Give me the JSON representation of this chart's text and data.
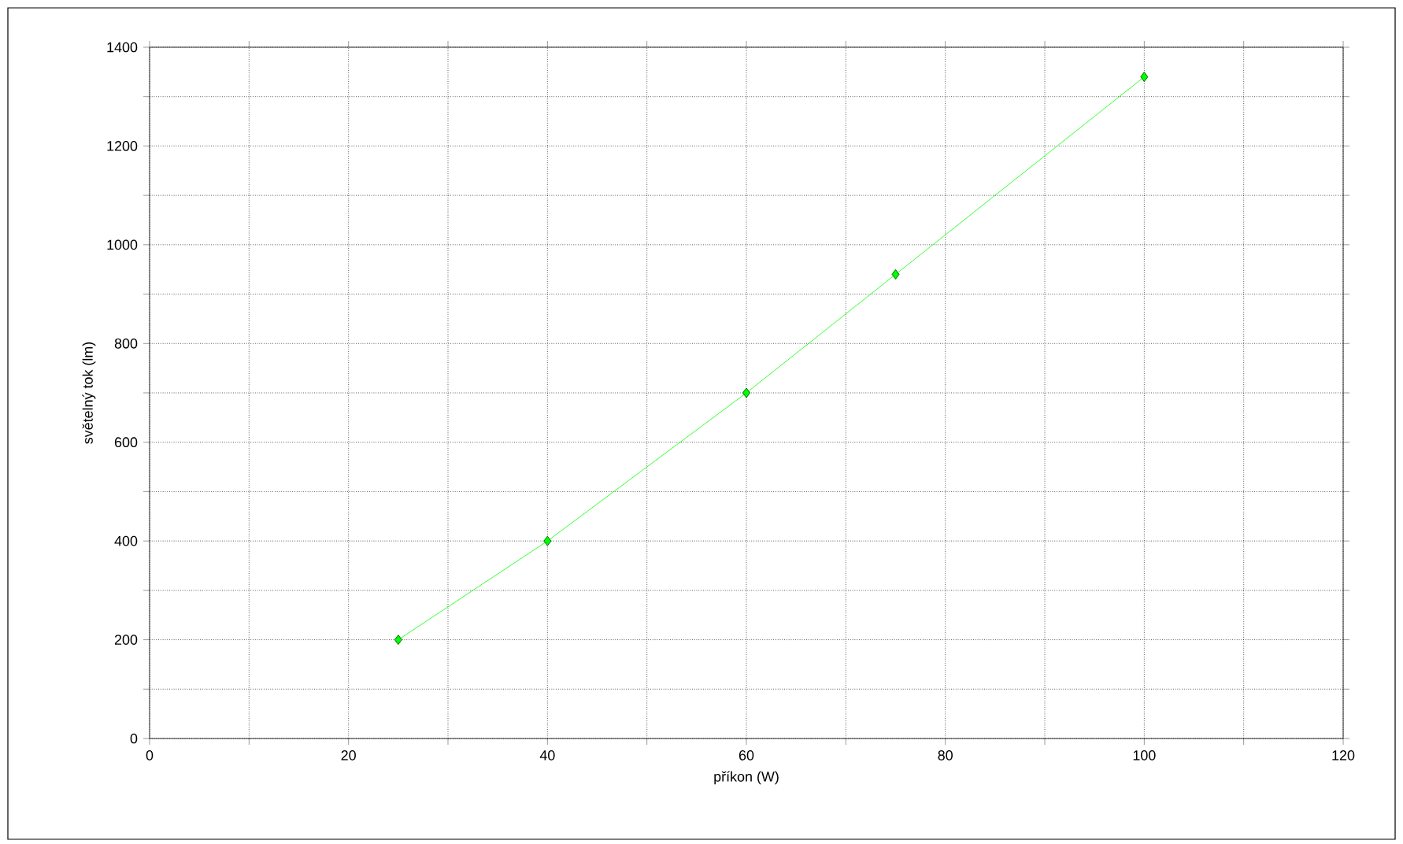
{
  "chart_data": {
    "type": "line",
    "xlabel": "příkon (W)",
    "ylabel": "světelný tok (lm)",
    "x": [
      25,
      40,
      60,
      75,
      100
    ],
    "series": [
      {
        "color": "#00ff00",
        "values": [
          200,
          400,
          700,
          940,
          1340
        ]
      }
    ],
    "xlim": [
      0,
      120
    ],
    "ylim": [
      0,
      1400
    ],
    "xticks": [
      0,
      {
        "value": 10,
        "label": null
      },
      20,
      {
        "value": 30,
        "label": null
      },
      40,
      {
        "value": 50,
        "label": null
      },
      60,
      {
        "value": 70,
        "label": null
      },
      80,
      {
        "value": 90,
        "label": null
      },
      100,
      {
        "value": 110,
        "label": null
      },
      120
    ],
    "yticks": [
      0,
      {
        "value": 100,
        "label": null
      },
      200,
      {
        "value": 300,
        "label": null
      },
      400,
      {
        "value": 500,
        "label": null
      },
      600,
      {
        "value": 700,
        "label": null
      },
      800,
      {
        "value": 900,
        "label": null
      },
      1000,
      {
        "value": 1100,
        "label": null
      },
      1200,
      {
        "value": 1300,
        "label": null
      },
      1400
    ],
    "grid": true,
    "marker": "diamond",
    "line_style": "solid"
  }
}
